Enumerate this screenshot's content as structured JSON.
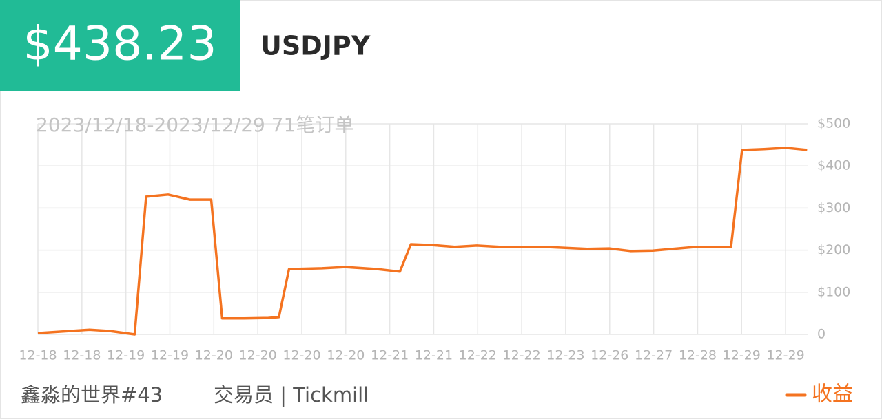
{
  "header": {
    "price": "$438.23",
    "symbol": "USDJPY"
  },
  "chart_data": {
    "type": "line",
    "title": "2023/12/18-2023/12/29 71笔订单",
    "x": [
      0,
      1.17,
      1.64,
      2.2,
      2.46,
      2.96,
      3.46,
      3.94,
      4.19,
      4.69,
      5.24,
      5.48,
      5.71,
      6.46,
      6.98,
      7.72,
      8.23,
      8.48,
      8.97,
      9.48,
      9.98,
      10.49,
      11.49,
      12.49,
      12.99,
      13.47,
      13.98,
      14.98,
      15.76,
      16.01,
      16.51,
      17,
      17.49
    ],
    "series": [
      {
        "name": "收益",
        "color": "#f47320",
        "values": [
          3,
          11,
          8,
          0,
          327,
          332,
          320,
          320,
          38,
          38,
          39,
          41,
          155,
          157,
          160,
          155,
          149,
          214,
          212,
          208,
          211,
          208,
          208,
          203,
          204,
          198,
          199,
          208,
          208,
          438,
          440,
          443,
          438
        ]
      }
    ],
    "xlim": [
      0,
      17.5
    ],
    "xticks": [
      {
        "value": 0,
        "label": "12-18"
      },
      {
        "value": 1,
        "label": "12-18"
      },
      {
        "value": 2,
        "label": "12-19"
      },
      {
        "value": 3,
        "label": "12-19"
      },
      {
        "value": 4,
        "label": "12-20"
      },
      {
        "value": 5,
        "label": "12-20"
      },
      {
        "value": 6,
        "label": "12-20"
      },
      {
        "value": 7,
        "label": "12-20"
      },
      {
        "value": 8,
        "label": "12-21"
      },
      {
        "value": 9,
        "label": "12-21"
      },
      {
        "value": 10,
        "label": "12-22"
      },
      {
        "value": 11,
        "label": "12-22"
      },
      {
        "value": 12,
        "label": "12-23"
      },
      {
        "value": 13,
        "label": "12-26"
      },
      {
        "value": 14,
        "label": "12-27"
      },
      {
        "value": 15,
        "label": "12-28"
      },
      {
        "value": 16,
        "label": "12-29"
      },
      {
        "value": 17,
        "label": "12-29"
      }
    ],
    "ylim": [
      0,
      500
    ],
    "yticks": [
      0,
      {
        "value": 100,
        "label": "$100"
      },
      {
        "value": 200,
        "label": "$200"
      },
      {
        "value": 300,
        "label": "$300"
      },
      {
        "value": 400,
        "label": "$400"
      },
      {
        "value": 500,
        "label": "$500"
      }
    ],
    "grid": true,
    "legend": "bottom-right"
  },
  "footer": {
    "author": "鑫淼的世界#43",
    "role": "交易员 | Tickmill"
  }
}
